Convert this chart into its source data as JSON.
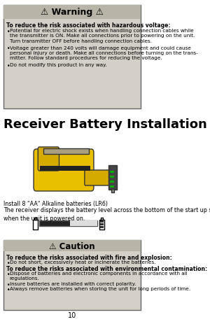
{
  "bg_color": "#ffffff",
  "page_number": "10",
  "warning_header": "⚠ Warning ⚠",
  "warning_title": "To reduce the risk associated with hazardous voltage:",
  "warning_bullets": [
    "Potential for electric shock exists when handling connection cables while\nthe transmitter is ON. Make all connections prior to powering on the unit.\nTurn transmitter OFF before handling connection cables.",
    "Voltage greater than 240 volts will damage equipment and could cause\npersonal injury or death. Make all connections before turning on the trans-\nmitter. Follow standard procedures for reducing the voltage.",
    "Do not modify this product in any way."
  ],
  "section_title": "Receiver Battery Installation",
  "install_text1": "Install 8 \"AA\" Alkaline batteries (LR6)",
  "install_text2": "The receiver displays the battery level across the bottom of the start up screen\nwhen the unit is powered on.",
  "caution_header": "⚠ Caution",
  "caution_title1": "To reduce the risks associated with fire and explosion:",
  "caution_bullets1": [
    "Do not short, excessively heat or incinerate the batteries."
  ],
  "caution_title2": "To reduce the risks associated with environmental contamination:",
  "caution_bullets2": [
    "Dispose of batteries and electronic components in accordance with all\nregulations.",
    "Insure batteries are installed with correct polarity.",
    "Always remove batteries when storing the unit for long periods of time."
  ],
  "warning_box_color": "#d4d0c8",
  "caution_box_color": "#d4d0c8",
  "warning_header_bg": "#b8b4a8",
  "caution_header_bg": "#b8b4a8"
}
